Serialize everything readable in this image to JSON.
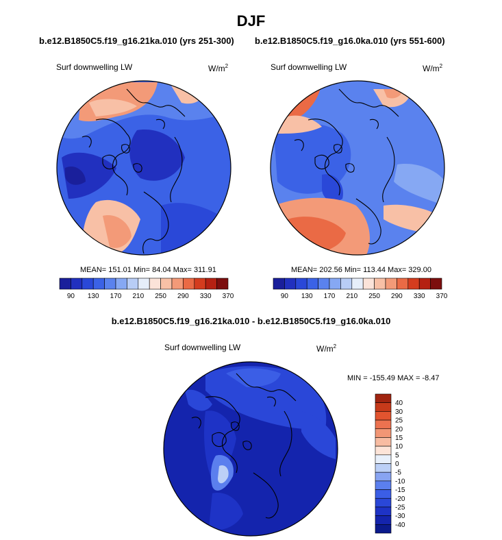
{
  "title": "DJF",
  "panels": [
    {
      "case": "b.e12.B1850C5.f19_g16.21ka.010 (yrs 251-300)",
      "variable": "Surf downwelling LW",
      "units": "W/m",
      "units_exp": "2",
      "stats": "MEAN= 151.01 Min=  84.04  Max= 311.91"
    },
    {
      "case": "b.e12.B1850C5.f19_g16.0ka.010 (yrs 551-600)",
      "variable": "Surf downwelling LW",
      "units": "W/m",
      "units_exp": "2",
      "stats": "MEAN= 202.56  Min= 113.44  Max= 329.00"
    },
    {
      "case": "b.e12.B1850C5.f19_g16.21ka.010 - b.e12.B1850C5.f19_g16.0ka.010",
      "variable": "Surf downwelling LW",
      "units": "W/m",
      "units_exp": "2",
      "stats": "MIN = -155.49 MAX =  -8.47"
    }
  ],
  "colors": {
    "abs_scale": [
      "#1a1f9b",
      "#2130bf",
      "#2a48d8",
      "#3b62e6",
      "#5a82ee",
      "#86a8f3",
      "#b8cdf6",
      "#e6eefa",
      "#fbe3d9",
      "#f8c0a6",
      "#f39a78",
      "#ea6a45",
      "#d43c1e",
      "#b52112",
      "#7c0e0e"
    ],
    "diff_scale": [
      "#0b1a8c",
      "#1424ad",
      "#1e33c6",
      "#2a47d8",
      "#3b5ee6",
      "#5b7fee",
      "#88a4f2",
      "#bcd0f7",
      "#e8f0fb",
      "#fde4d8",
      "#f8bca2",
      "#f29675",
      "#ec7250",
      "#e2542f",
      "#c63a1a",
      "#a02410"
    ]
  },
  "chart_data": [
    {
      "type": "heatmap",
      "projection": "north polar stereographic",
      "title": "b.e12.B1850C5.f19_g16.21ka.010 (yrs 251-300)",
      "variable": "Surf downwelling LW",
      "units": "W/m2",
      "stats": {
        "mean": 151.01,
        "min": 84.04,
        "max": 311.91
      },
      "colorbar_ticks": [
        "90",
        "130",
        "170",
        "210",
        "250",
        "290",
        "330",
        "370"
      ],
      "colorbar_levels": [
        90,
        110,
        130,
        150,
        170,
        190,
        210,
        230,
        250,
        270,
        290,
        310,
        330,
        350,
        370
      ]
    },
    {
      "type": "heatmap",
      "projection": "north polar stereographic",
      "title": "b.e12.B1850C5.f19_g16.0ka.010 (yrs 551-600)",
      "variable": "Surf downwelling LW",
      "units": "W/m2",
      "stats": {
        "mean": 202.56,
        "min": 113.44,
        "max": 329.0
      },
      "colorbar_ticks": [
        "90",
        "130",
        "170",
        "210",
        "250",
        "290",
        "330",
        "370"
      ],
      "colorbar_levels": [
        90,
        110,
        130,
        150,
        170,
        190,
        210,
        230,
        250,
        270,
        290,
        310,
        330,
        350,
        370
      ]
    },
    {
      "type": "heatmap",
      "projection": "north polar stereographic",
      "title": "b.e12.B1850C5.f19_g16.21ka.010 - b.e12.B1850C5.f19_g16.0ka.010",
      "variable": "Surf downwelling LW",
      "units": "W/m2",
      "stats": {
        "min": -155.49,
        "max": -8.47
      },
      "colorbar_ticks": [
        "40",
        "30",
        "25",
        "20",
        "15",
        "10",
        "5",
        "0",
        "-5",
        "-10",
        "-15",
        "-20",
        "-25",
        "-30",
        "-40"
      ]
    }
  ]
}
